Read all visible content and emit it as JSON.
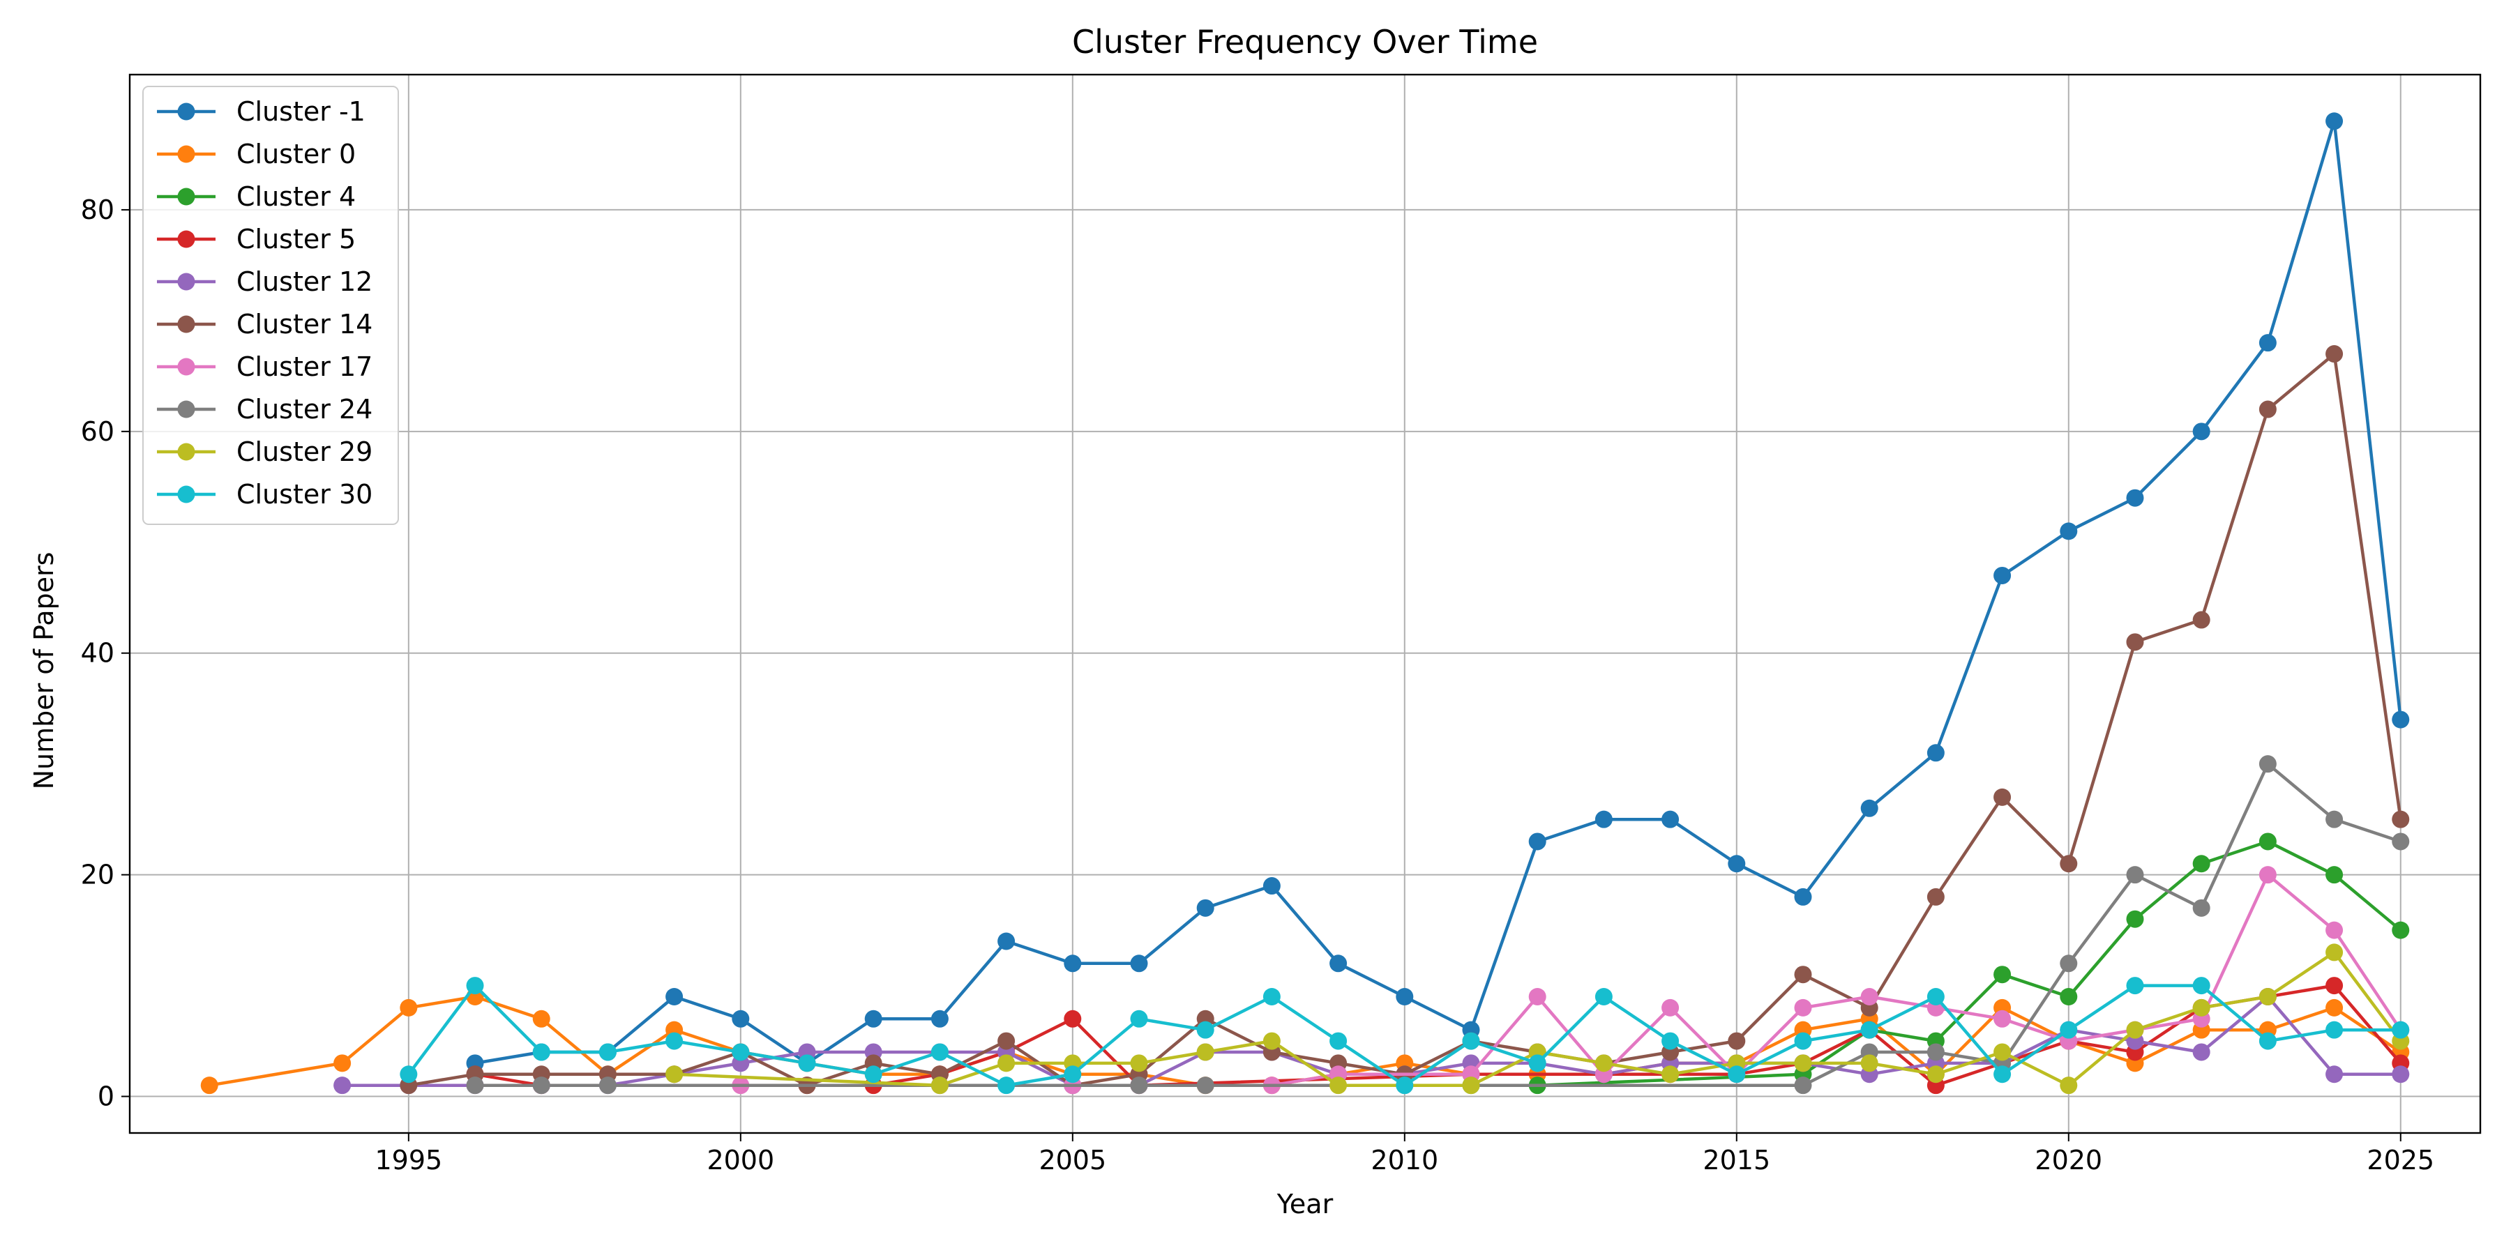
{
  "chart_data": {
    "type": "line",
    "title": "Cluster Frequency Over Time",
    "xlabel": "Year",
    "ylabel": "Number of Papers",
    "xlim": [
      1990.8,
      2026.2
    ],
    "ylim": [
      -3.3,
      92.2
    ],
    "x_ticks": [
      1995,
      2000,
      2005,
      2010,
      2015,
      2020,
      2025
    ],
    "y_ticks": [
      0,
      20,
      40,
      60,
      80
    ],
    "grid": true,
    "legend_position": "upper-left",
    "series": [
      {
        "name": "Cluster -1",
        "color": "#1f77b4",
        "x": [
          1996,
          1997,
          1998,
          1999,
          2000,
          2001,
          2002,
          2003,
          2004,
          2005,
          2006,
          2007,
          2008,
          2009,
          2010,
          2011,
          2012,
          2013,
          2014,
          2015,
          2016,
          2017,
          2018,
          2019,
          2020,
          2021,
          2022,
          2023,
          2024,
          2025
        ],
        "y": [
          3,
          4,
          4,
          9,
          7,
          3,
          7,
          7,
          14,
          12,
          12,
          17,
          19,
          12,
          9,
          6,
          23,
          25,
          25,
          21,
          18,
          26,
          31,
          47,
          51,
          54,
          60,
          68,
          88,
          34
        ]
      },
      {
        "name": "Cluster 0",
        "color": "#ff7f0e",
        "x": [
          1992,
          1994,
          1995,
          1996,
          1997,
          1998,
          1999,
          2000,
          2001,
          2002,
          2003,
          2004,
          2005,
          2006,
          2007,
          2008,
          2009,
          2010,
          2011,
          2012,
          2013,
          2014,
          2015,
          2016,
          2017,
          2018,
          2019,
          2020,
          2021,
          2022,
          2023,
          2024,
          2025
        ],
        "y": [
          1,
          3,
          8,
          9,
          7,
          2,
          6,
          4,
          3,
          2,
          2,
          4,
          2,
          2,
          1,
          1,
          2,
          3,
          2,
          2,
          2,
          3,
          3,
          6,
          7,
          2,
          8,
          5,
          3,
          6,
          6,
          8,
          4
        ]
      },
      {
        "name": "Cluster 4",
        "color": "#2ca02c",
        "x": [
          2011,
          2012,
          2016,
          2017,
          2018,
          2019,
          2020,
          2021,
          2022,
          2023,
          2024,
          2025
        ],
        "y": [
          1,
          1,
          2,
          6,
          5,
          11,
          9,
          16,
          21,
          23,
          20,
          15
        ]
      },
      {
        "name": "Cluster 5",
        "color": "#d62728",
        "x": [
          1996,
          1997,
          2001,
          2002,
          2003,
          2004,
          2005,
          2006,
          2011,
          2014,
          2015,
          2016,
          2017,
          2018,
          2019,
          2020,
          2021,
          2022,
          2023,
          2024,
          2025
        ],
        "y": [
          2,
          1,
          1,
          1,
          2,
          4,
          7,
          1,
          2,
          2,
          2,
          3,
          6,
          1,
          3,
          5,
          4,
          8,
          9,
          10,
          3
        ]
      },
      {
        "name": "Cluster 12",
        "color": "#9467bd",
        "x": [
          1994,
          1995,
          1996,
          1997,
          1998,
          1999,
          2000,
          2001,
          2002,
          2003,
          2004,
          2005,
          2006,
          2007,
          2008,
          2009,
          2010,
          2011,
          2012,
          2013,
          2014,
          2015,
          2016,
          2017,
          2018,
          2019,
          2020,
          2021,
          2022,
          2023,
          2024,
          2025
        ],
        "y": [
          1,
          1,
          1,
          1,
          1,
          2,
          3,
          4,
          4,
          4,
          4,
          1,
          1,
          4,
          4,
          2,
          2,
          3,
          3,
          2,
          3,
          3,
          3,
          2,
          3,
          3,
          6,
          5,
          4,
          9,
          2,
          2
        ]
      },
      {
        "name": "Cluster 14",
        "color": "#8c564b",
        "x": [
          1995,
          1996,
          1997,
          1998,
          1999,
          2000,
          2001,
          2002,
          2003,
          2004,
          2005,
          2006,
          2007,
          2008,
          2009,
          2010,
          2011,
          2012,
          2013,
          2014,
          2015,
          2016,
          2017,
          2018,
          2019,
          2020,
          2021,
          2022,
          2023,
          2024,
          2025
        ],
        "y": [
          1,
          2,
          2,
          2,
          2,
          4,
          1,
          3,
          2,
          5,
          1,
          2,
          7,
          4,
          3,
          2,
          5,
          4,
          3,
          4,
          5,
          11,
          8,
          18,
          27,
          21,
          41,
          43,
          62,
          67,
          25
        ]
      },
      {
        "name": "Cluster 17",
        "color": "#e377c2",
        "x": [
          2000,
          2005,
          2008,
          2009,
          2011,
          2012,
          2013,
          2014,
          2015,
          2016,
          2017,
          2018,
          2019,
          2020,
          2021,
          2022,
          2023,
          2024,
          2025
        ],
        "y": [
          1,
          1,
          1,
          2,
          2,
          9,
          2,
          8,
          2,
          8,
          9,
          8,
          7,
          5,
          6,
          7,
          20,
          15,
          6
        ]
      },
      {
        "name": "Cluster 24",
        "color": "#7f7f7f",
        "x": [
          1996,
          1997,
          1998,
          2003,
          2006,
          2007,
          2010,
          2016,
          2017,
          2018,
          2019,
          2020,
          2021,
          2022,
          2023,
          2024,
          2025
        ],
        "y": [
          1,
          1,
          1,
          1,
          1,
          1,
          1,
          1,
          4,
          4,
          3,
          12,
          20,
          17,
          30,
          25,
          23
        ]
      },
      {
        "name": "Cluster 29",
        "color": "#bcbd22",
        "x": [
          1999,
          2003,
          2004,
          2005,
          2006,
          2007,
          2008,
          2009,
          2011,
          2012,
          2013,
          2014,
          2015,
          2016,
          2017,
          2018,
          2019,
          2020,
          2021,
          2022,
          2023,
          2024,
          2025
        ],
        "y": [
          2,
          1,
          3,
          3,
          3,
          4,
          5,
          1,
          1,
          4,
          3,
          2,
          3,
          3,
          3,
          2,
          4,
          1,
          6,
          8,
          9,
          13,
          5
        ]
      },
      {
        "name": "Cluster 30",
        "color": "#17becf",
        "x": [
          1995,
          1996,
          1997,
          1998,
          1999,
          2000,
          2001,
          2002,
          2003,
          2004,
          2005,
          2006,
          2007,
          2008,
          2009,
          2010,
          2011,
          2012,
          2013,
          2014,
          2015,
          2016,
          2017,
          2018,
          2019,
          2020,
          2021,
          2022,
          2023,
          2024,
          2025
        ],
        "y": [
          2,
          10,
          4,
          4,
          5,
          4,
          3,
          2,
          4,
          1,
          2,
          7,
          6,
          9,
          5,
          1,
          5,
          3,
          9,
          5,
          2,
          5,
          6,
          9,
          2,
          6,
          10,
          10,
          5,
          6,
          6
        ]
      }
    ]
  }
}
